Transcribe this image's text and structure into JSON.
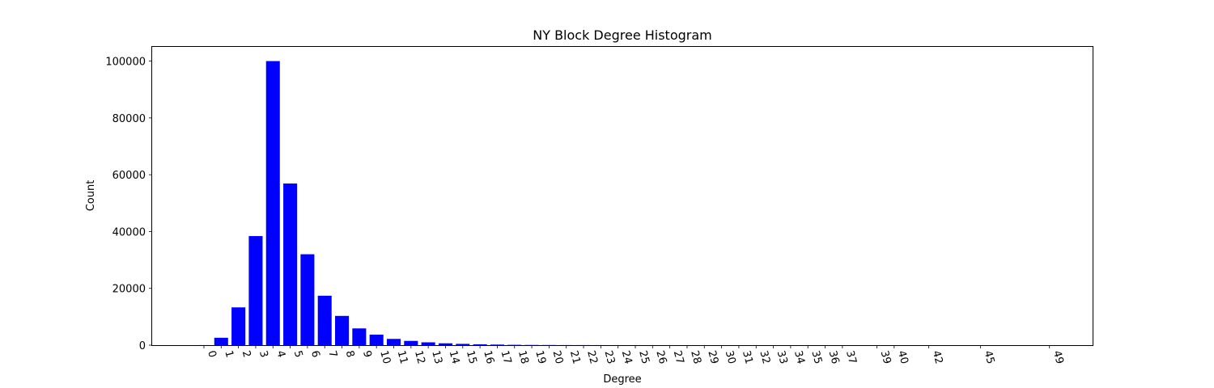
{
  "chart_data": {
    "type": "bar",
    "title": "NY Block Degree Histogram",
    "xlabel": "Degree",
    "ylabel": "Count",
    "x": [
      0,
      1,
      2,
      3,
      4,
      5,
      6,
      7,
      8,
      9,
      10,
      11,
      12,
      13,
      14,
      15,
      16,
      17,
      18,
      19,
      20,
      21,
      22,
      23,
      24,
      25,
      26,
      27,
      28,
      29,
      30,
      31,
      32,
      33,
      34,
      35,
      36,
      37,
      39,
      40,
      42,
      45,
      49
    ],
    "values": [
      20,
      2600,
      13300,
      38400,
      100000,
      56900,
      32000,
      17400,
      10300,
      5900,
      3700,
      2200,
      1500,
      1000,
      650,
      450,
      300,
      200,
      120,
      70,
      50,
      30,
      25,
      15,
      10,
      8,
      6,
      5,
      4,
      3,
      3,
      2,
      2,
      1,
      1,
      1,
      1,
      1,
      1,
      1,
      1,
      1,
      1
    ],
    "xlim": [
      -3,
      51.5
    ],
    "ylim": [
      0,
      105000
    ],
    "yticks": [
      0,
      20000,
      40000,
      60000,
      80000,
      100000
    ],
    "bar_color": "#0000ff",
    "grid": false,
    "legend": false
  }
}
